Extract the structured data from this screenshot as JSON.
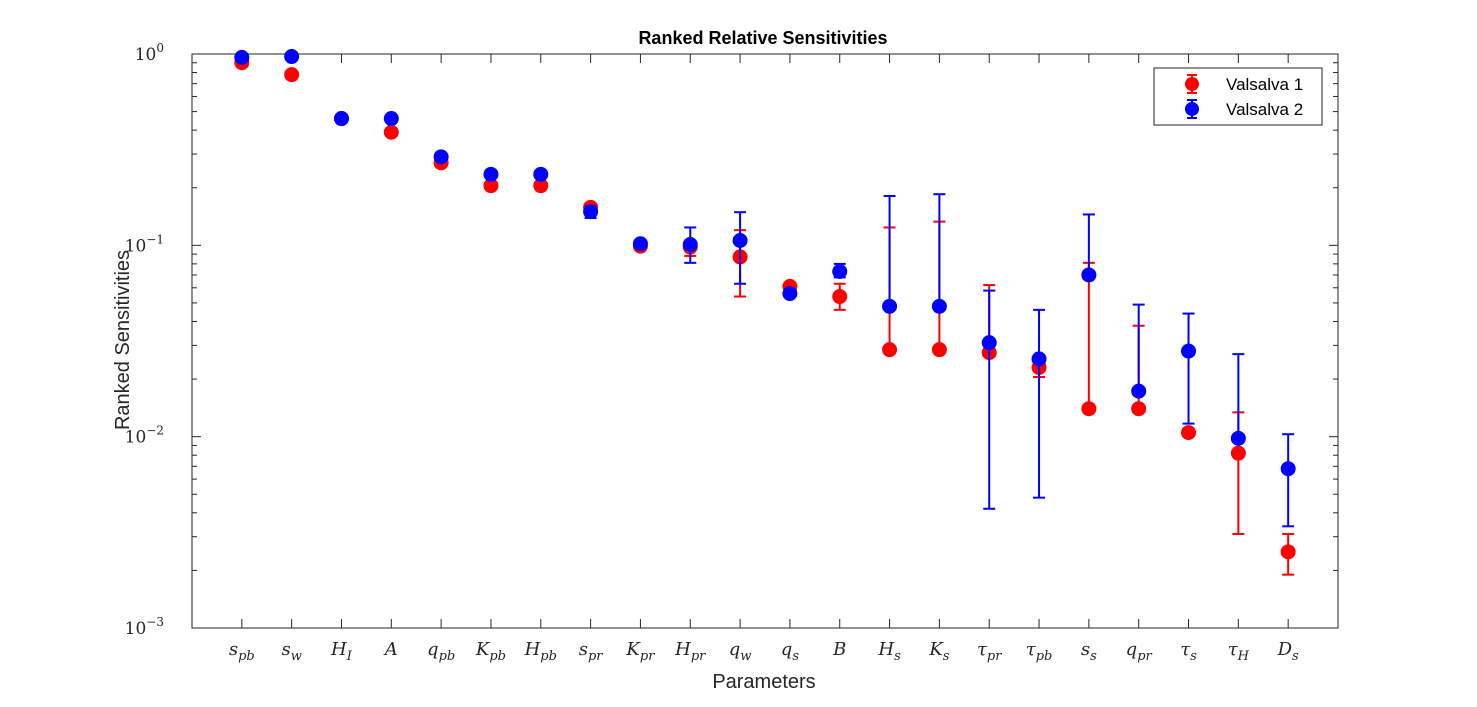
{
  "chart_data": {
    "type": "scatter",
    "title": "Ranked Relative Sensitivities",
    "xlabel": "Parameters",
    "ylabel": "Ranked Sensitivities",
    "yscale": "log",
    "ylim": [
      0.001,
      1
    ],
    "yticks": [
      {
        "base": "10",
        "exp": "0",
        "value": 1
      },
      {
        "base": "10",
        "exp": "−1",
        "value": 0.1
      },
      {
        "base": "10",
        "exp": "−2",
        "value": 0.01
      },
      {
        "base": "10",
        "exp": "−3",
        "value": 0.001
      }
    ],
    "categories": [
      {
        "base": "s",
        "sub": "pb"
      },
      {
        "base": "s",
        "sub": "w"
      },
      {
        "base": "H",
        "sub": "I"
      },
      {
        "base": "A",
        "sub": ""
      },
      {
        "base": "q",
        "sub": "pb"
      },
      {
        "base": "K",
        "sub": "pb"
      },
      {
        "base": "H",
        "sub": "pb"
      },
      {
        "base": "s",
        "sub": "pr"
      },
      {
        "base": "K",
        "sub": "pr"
      },
      {
        "base": "H",
        "sub": "pr"
      },
      {
        "base": "q",
        "sub": "w"
      },
      {
        "base": "q",
        "sub": "s"
      },
      {
        "base": "B",
        "sub": ""
      },
      {
        "base": "H",
        "sub": "s"
      },
      {
        "base": "K",
        "sub": "s"
      },
      {
        "base": "τ",
        "sub": "pr"
      },
      {
        "base": "τ",
        "sub": "pb"
      },
      {
        "base": "s",
        "sub": "s"
      },
      {
        "base": "q",
        "sub": "pr"
      },
      {
        "base": "τ",
        "sub": "s"
      },
      {
        "base": "τ",
        "sub": "H"
      },
      {
        "base": "D",
        "sub": "s"
      }
    ],
    "series": [
      {
        "name": "Valsalva 1",
        "color": "#ff0000",
        "values": [
          0.9,
          0.78,
          0.46,
          0.39,
          0.27,
          0.205,
          0.205,
          0.158,
          0.099,
          0.098,
          0.087,
          0.061,
          0.054,
          0.0285,
          0.0285,
          0.0275,
          0.023,
          0.014,
          0.014,
          0.0105,
          0.0082,
          0.0025
        ],
        "lower": [
          0.88,
          0.78,
          0.45,
          0.39,
          0.26,
          0.205,
          0.205,
          0.155,
          0.098,
          0.088,
          0.054,
          0.061,
          0.046,
          0.0285,
          0.0285,
          0.0275,
          0.0205,
          0.014,
          0.014,
          0.0105,
          0.0031,
          0.0019
        ],
        "upper": [
          0.92,
          0.78,
          0.47,
          0.39,
          0.28,
          0.205,
          0.205,
          0.161,
          0.1,
          0.105,
          0.12,
          0.061,
          0.063,
          0.124,
          0.133,
          0.062,
          0.0245,
          0.081,
          0.038,
          0.0105,
          0.0134,
          0.0031
        ]
      },
      {
        "name": "Valsalva 2",
        "color": "#0000ff",
        "values": [
          0.96,
          0.97,
          0.46,
          0.46,
          0.29,
          0.235,
          0.235,
          0.15,
          0.102,
          0.101,
          0.106,
          0.056,
          0.073,
          0.048,
          0.048,
          0.031,
          0.0255,
          0.07,
          0.0173,
          0.028,
          0.0098,
          0.0068
        ],
        "lower": [
          0.94,
          0.97,
          0.44,
          0.46,
          0.28,
          0.235,
          0.235,
          0.139,
          0.1,
          0.081,
          0.063,
          0.056,
          0.068,
          0.048,
          0.048,
          0.0042,
          0.0048,
          0.07,
          0.0173,
          0.0117,
          0.0098,
          0.0034
        ],
        "upper": [
          0.97,
          0.97,
          0.48,
          0.46,
          0.3,
          0.235,
          0.235,
          0.16,
          0.104,
          0.124,
          0.149,
          0.056,
          0.08,
          0.181,
          0.185,
          0.058,
          0.046,
          0.145,
          0.049,
          0.044,
          0.027,
          0.0103
        ]
      }
    ],
    "legend": {
      "position": "top-right"
    },
    "grid": false
  }
}
